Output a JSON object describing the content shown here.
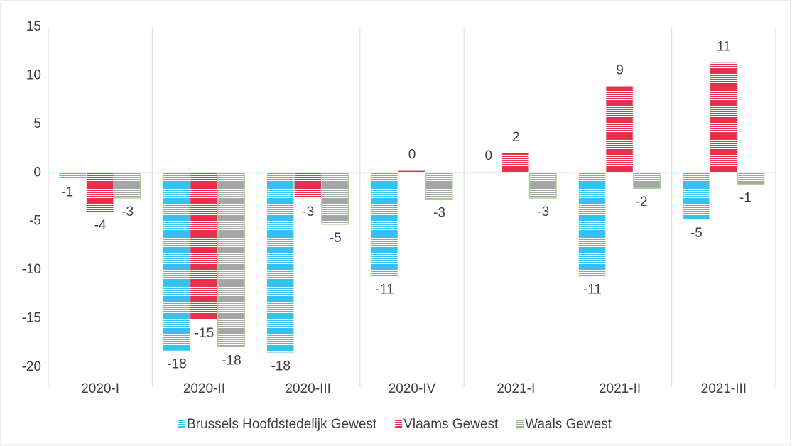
{
  "chart_data": {
    "type": "bar",
    "categories": [
      "2020-I",
      "2020-II",
      "2020-III",
      "2020-IV",
      "2021-I",
      "2021-II",
      "2021-III"
    ],
    "series": [
      {
        "name": "Brussels Hoofdstedelijk Gewest",
        "color": "#33c3ec",
        "values": [
          -0.6,
          -18.3,
          -18.5,
          -10.6,
          0.1,
          -10.6,
          -4.8
        ],
        "value_labels": [
          "-1",
          "-18",
          "-18",
          "-11",
          "0",
          "-11",
          "-5"
        ]
      },
      {
        "name": "Vlaams Gewest",
        "color": "#e8304d",
        "values": [
          -4.0,
          -15.1,
          -2.6,
          0.2,
          2.0,
          8.9,
          11.3
        ],
        "value_labels": [
          "-4",
          "-15",
          "-3",
          "0",
          "2",
          "9",
          "11"
        ]
      },
      {
        "name": "Waals Gewest",
        "color": "#a6a6a6",
        "values": [
          -2.6,
          -17.9,
          -5.3,
          -2.7,
          -2.6,
          -1.6,
          -1.2
        ],
        "value_labels": [
          "-3",
          "-18",
          "-5",
          "-3",
          "-3",
          "-2",
          "-1"
        ]
      }
    ],
    "ylim": [
      -20,
      15
    ],
    "yticks": [
      -20,
      -15,
      -10,
      -5,
      0,
      5,
      10,
      15
    ],
    "legend": "bottom"
  }
}
